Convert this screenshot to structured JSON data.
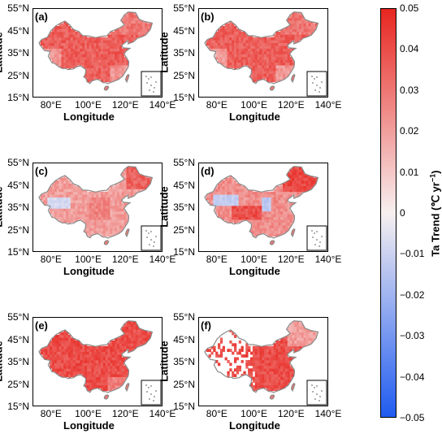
{
  "panels": [
    {
      "label": "(a)",
      "pattern": "warm"
    },
    {
      "label": "(b)",
      "pattern": "warm"
    },
    {
      "label": "(c)",
      "pattern": "mild"
    },
    {
      "label": "(d)",
      "pattern": "mixed"
    },
    {
      "label": "(e)",
      "pattern": "strong"
    },
    {
      "label": "(f)",
      "pattern": "sparse"
    }
  ],
  "axes": {
    "xlabel": "Longitude",
    "ylabel": "Latitude",
    "xticks": [
      "80°E",
      "100°E",
      "120°E",
      "140°E"
    ],
    "yticks": [
      "55°N",
      "45°N",
      "35°N",
      "25°N",
      "15°N"
    ],
    "xlim": [
      70,
      140
    ],
    "ylim": [
      15,
      55
    ]
  },
  "colorbar": {
    "title": "Ta Trend (℃ yr",
    "title_sup": "−1",
    "title_end": ")",
    "ticks": [
      "0.05",
      "0.04",
      "0.03",
      "0.02",
      "0.01",
      "0",
      "−0.01",
      "−0.02",
      "−0.03",
      "−0.04",
      "−0.05"
    ],
    "range": [
      -0.05,
      0.05
    ],
    "color_max": "#e8251f",
    "color_mid": "#f7f0f0",
    "color_min": "#1f5bf0"
  },
  "colors": {
    "border": "#8a8a8a"
  }
}
